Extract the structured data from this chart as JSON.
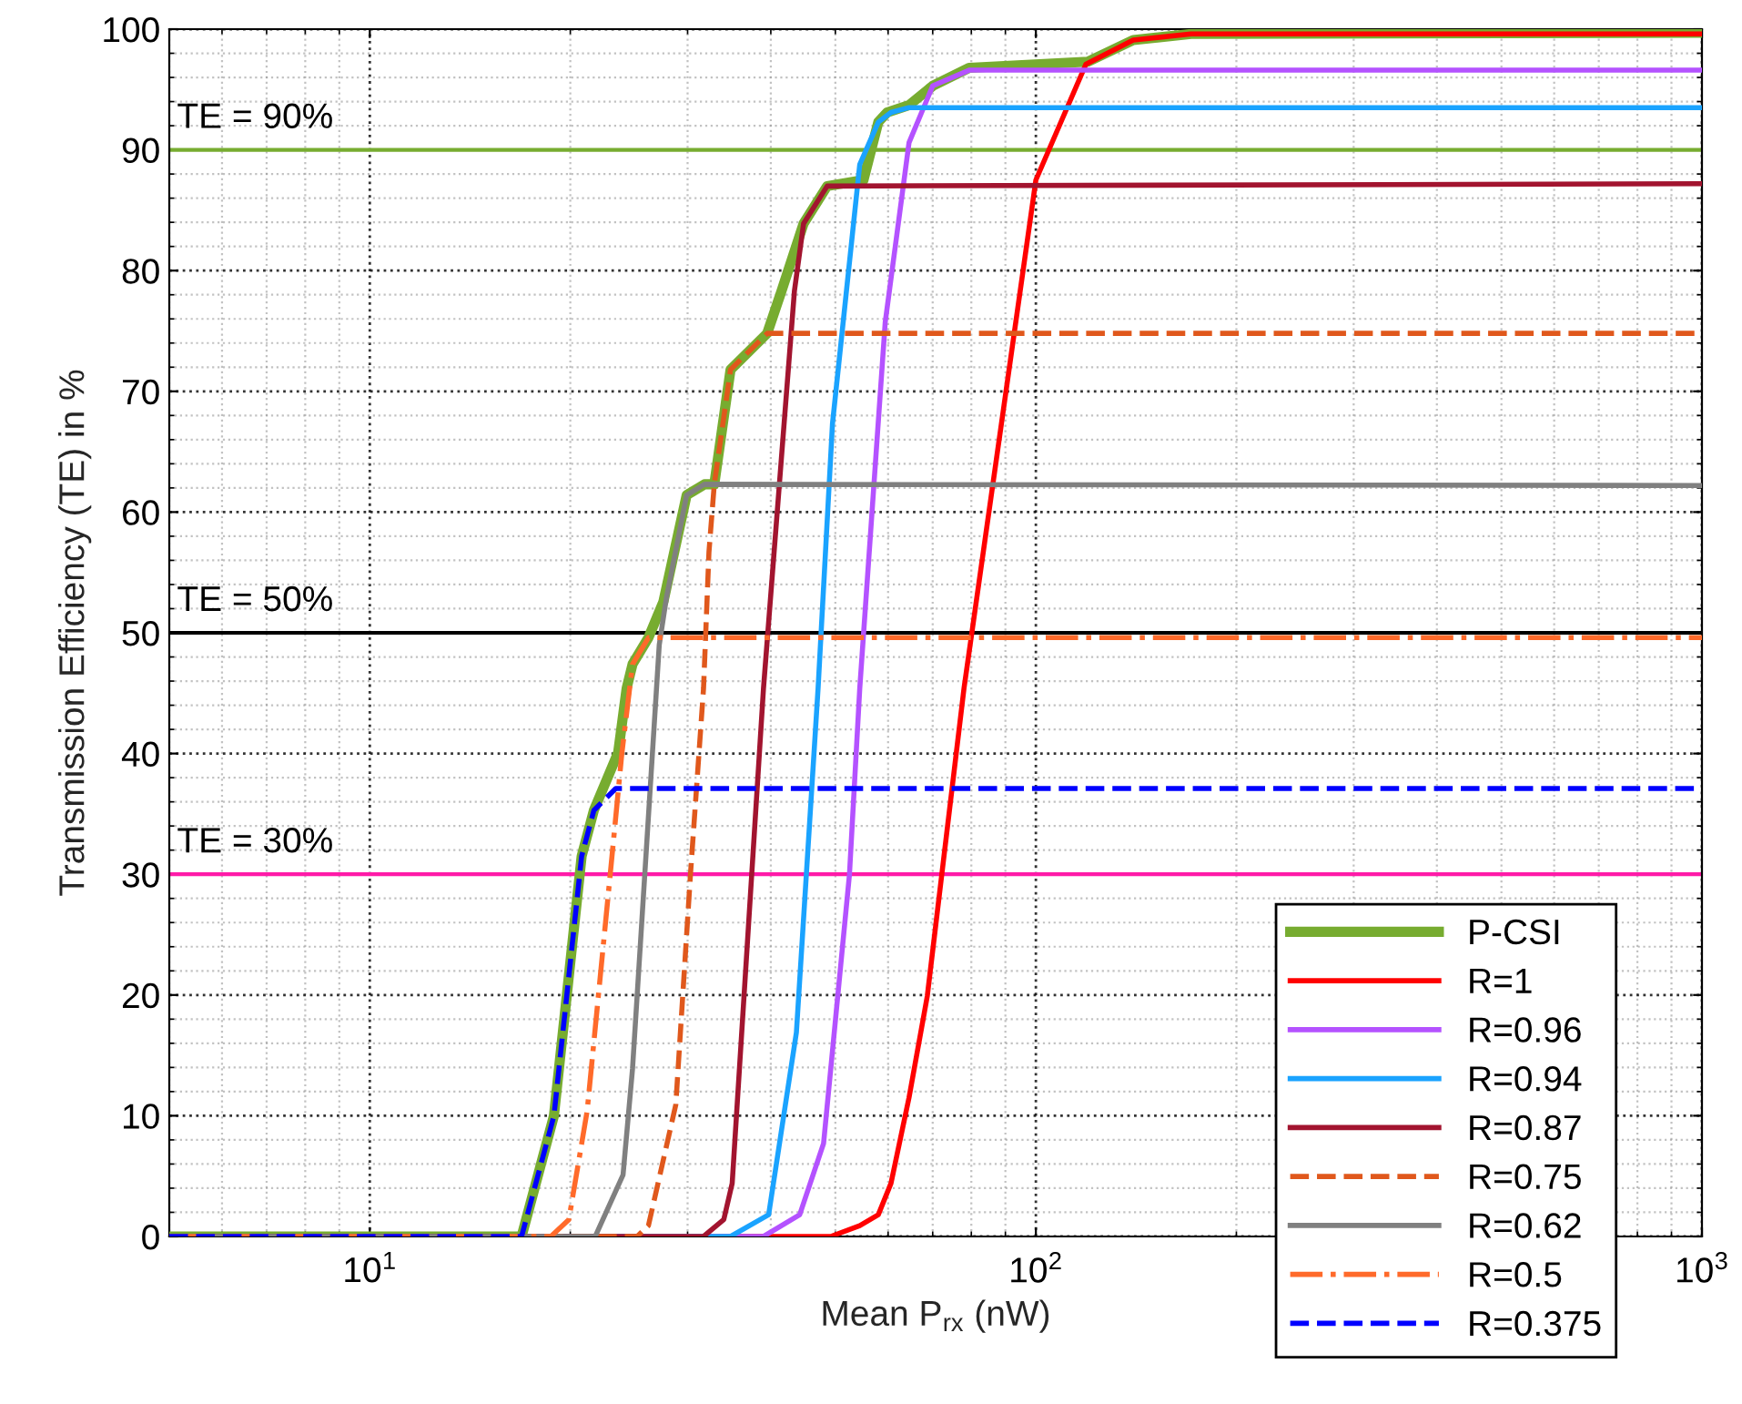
{
  "chart_data": {
    "type": "line",
    "xlabel": "Mean P$_{rx}$ (nW)",
    "ylabel": "Transmission Efficiency (TE) in %",
    "log": "x",
    "xlim": [
      5,
      1000
    ],
    "xticks": [
      {
        "value": 10,
        "label": "10$^{1}$"
      },
      {
        "value": 100,
        "label": "10$^{2}$"
      },
      {
        "value": 1000,
        "label": "10$^{3}$"
      }
    ],
    "ylim": [
      0,
      100
    ],
    "yticks": [
      0,
      10,
      20,
      30,
      40,
      50,
      60,
      70,
      80,
      90,
      100
    ],
    "grid": true,
    "legend": "bottom right",
    "ref_lines": [
      {
        "axis": "y",
        "value": 90,
        "label": "TE = 90%",
        "color": "#77ac30"
      },
      {
        "axis": "y",
        "value": 50,
        "label": "TE = 50%",
        "color": "#000000"
      },
      {
        "axis": "y",
        "value": 30,
        "label": "TE = 30%",
        "color": "#ff1aa8"
      }
    ],
    "series": [
      {
        "name": "P-CSI",
        "color": "#77ac30",
        "line_style": "solid",
        "x": [
          5,
          16.9,
          18.9,
          20.8,
          21.7,
          23.6,
          24.3,
          24.8,
          26.2,
          27.6,
          29.9,
          31.8,
          32.9,
          34.8,
          39.5,
          41.5,
          44.8,
          48.6,
          55.1,
          58.0,
          59.8,
          64.5,
          70.0,
          79.4,
          119.7,
          140,
          171,
          1000
        ],
        "values": [
          0,
          0,
          10,
          31.5,
          35.3,
          40.1,
          45.4,
          47.4,
          49.6,
          52.6,
          61.4,
          62.3,
          62.3,
          71.8,
          74.8,
          78.3,
          83.9,
          87.0,
          87.5,
          92.3,
          93.1,
          93.7,
          95.3,
          96.8,
          97.3,
          99.1,
          99.6,
          99.7
        ]
      },
      {
        "name": "R=1",
        "color": "#ff0000",
        "line_style": "solid",
        "x": [
          5,
          49.2,
          54.4,
          58.0,
          60.6,
          64.5,
          68.7,
          78.0,
          100,
          118.9,
          140,
          171,
          1000
        ],
        "values": [
          0,
          0,
          0.9,
          1.8,
          4.4,
          11.5,
          19.9,
          45.4,
          87.5,
          97.1,
          99.1,
          99.6,
          99.6
        ]
      },
      {
        "name": "R=0.96",
        "color": "#b452ff",
        "line_style": "solid",
        "x": [
          5,
          39.0,
          44.2,
          48.0,
          52.5,
          54.4,
          59.4,
          64.5,
          70.0,
          79.4,
          1000
        ],
        "values": [
          0,
          0,
          1.8,
          7.7,
          30,
          45.4,
          75.7,
          90.6,
          95.3,
          96.6,
          96.6
        ]
      },
      {
        "name": "R=0.94",
        "color": "#1aa3ff",
        "line_style": "solid",
        "x": [
          5,
          34.8,
          39.7,
          43.7,
          47.1,
          49.5,
          54.4,
          58.0,
          60.6,
          64.5,
          1000
        ],
        "values": [
          0,
          0,
          1.8,
          16.9,
          45.4,
          67.3,
          88.8,
          92.3,
          93.1,
          93.5,
          93.5
        ]
      },
      {
        "name": "R=0.87",
        "color": "#a2142f",
        "line_style": "solid",
        "x": [
          5,
          31.7,
          34.0,
          35.0,
          39.0,
          43.4,
          44.8,
          48.6,
          1000
        ],
        "values": [
          0,
          0,
          1.4,
          4.4,
          45.4,
          78.3,
          83.9,
          87.0,
          87.2
        ]
      },
      {
        "name": "R=0.75",
        "color": "#e0581c",
        "line_style": "dashed",
        "x": [
          5,
          25.2,
          26.2,
          28.8,
          30.3,
          31.7,
          32.3,
          32.9,
          34.8,
          39.5,
          1000
        ],
        "values": [
          0,
          0,
          0.9,
          10.9,
          30,
          45.4,
          56.7,
          62.3,
          71.8,
          74.8,
          74.8
        ]
      },
      {
        "name": "R=0.62",
        "color": "#808080",
        "line_style": "solid",
        "x": [
          5,
          21.8,
          24.0,
          24.8,
          27.2,
          27.9,
          29.9,
          31.8,
          1000
        ],
        "values": [
          0,
          0,
          5.1,
          13.9,
          49,
          53,
          61.4,
          62.3,
          62.2
        ]
      },
      {
        "name": "R=0.5",
        "color": "#ff6a2a",
        "line_style": "dashdot",
        "x": [
          5,
          18.7,
          19.9,
          21.2,
          23.1,
          23.9,
          24.8,
          26.2,
          1000
        ],
        "values": [
          0,
          0,
          1.4,
          10.4,
          31.5,
          40,
          47.4,
          49.6,
          49.6
        ]
      },
      {
        "name": "R=0.375",
        "color": "#0000ff",
        "line_style": "dashed",
        "x": [
          5,
          16.9,
          18.9,
          20.8,
          21.7,
          23.4,
          1000
        ],
        "values": [
          0,
          0,
          10,
          31.5,
          35.3,
          37.1,
          37.1
        ]
      }
    ]
  }
}
